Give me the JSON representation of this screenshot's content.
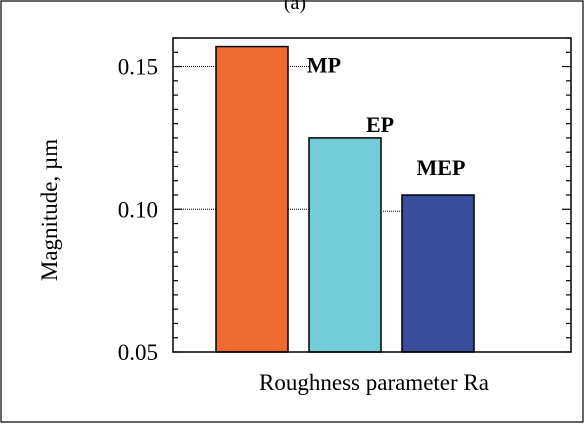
{
  "panel_label": "(a)",
  "chart_data": {
    "type": "bar",
    "title": "",
    "categories": [
      "MP",
      "EP",
      "MEP"
    ],
    "values": [
      0.157,
      0.125,
      0.105
    ],
    "colors": [
      "#F26B2E",
      "#72CCD8",
      "#3A4E9E"
    ],
    "xlabel": "Roughness parameter Ra",
    "ylabel": "Magnitude, µm",
    "ylim": [
      0.05,
      0.16
    ],
    "yticks": [
      "0.15",
      "0.10",
      "0.05"
    ],
    "ytick_values": [
      0.15,
      0.1,
      0.05
    ],
    "grid": false,
    "legend": "none"
  }
}
